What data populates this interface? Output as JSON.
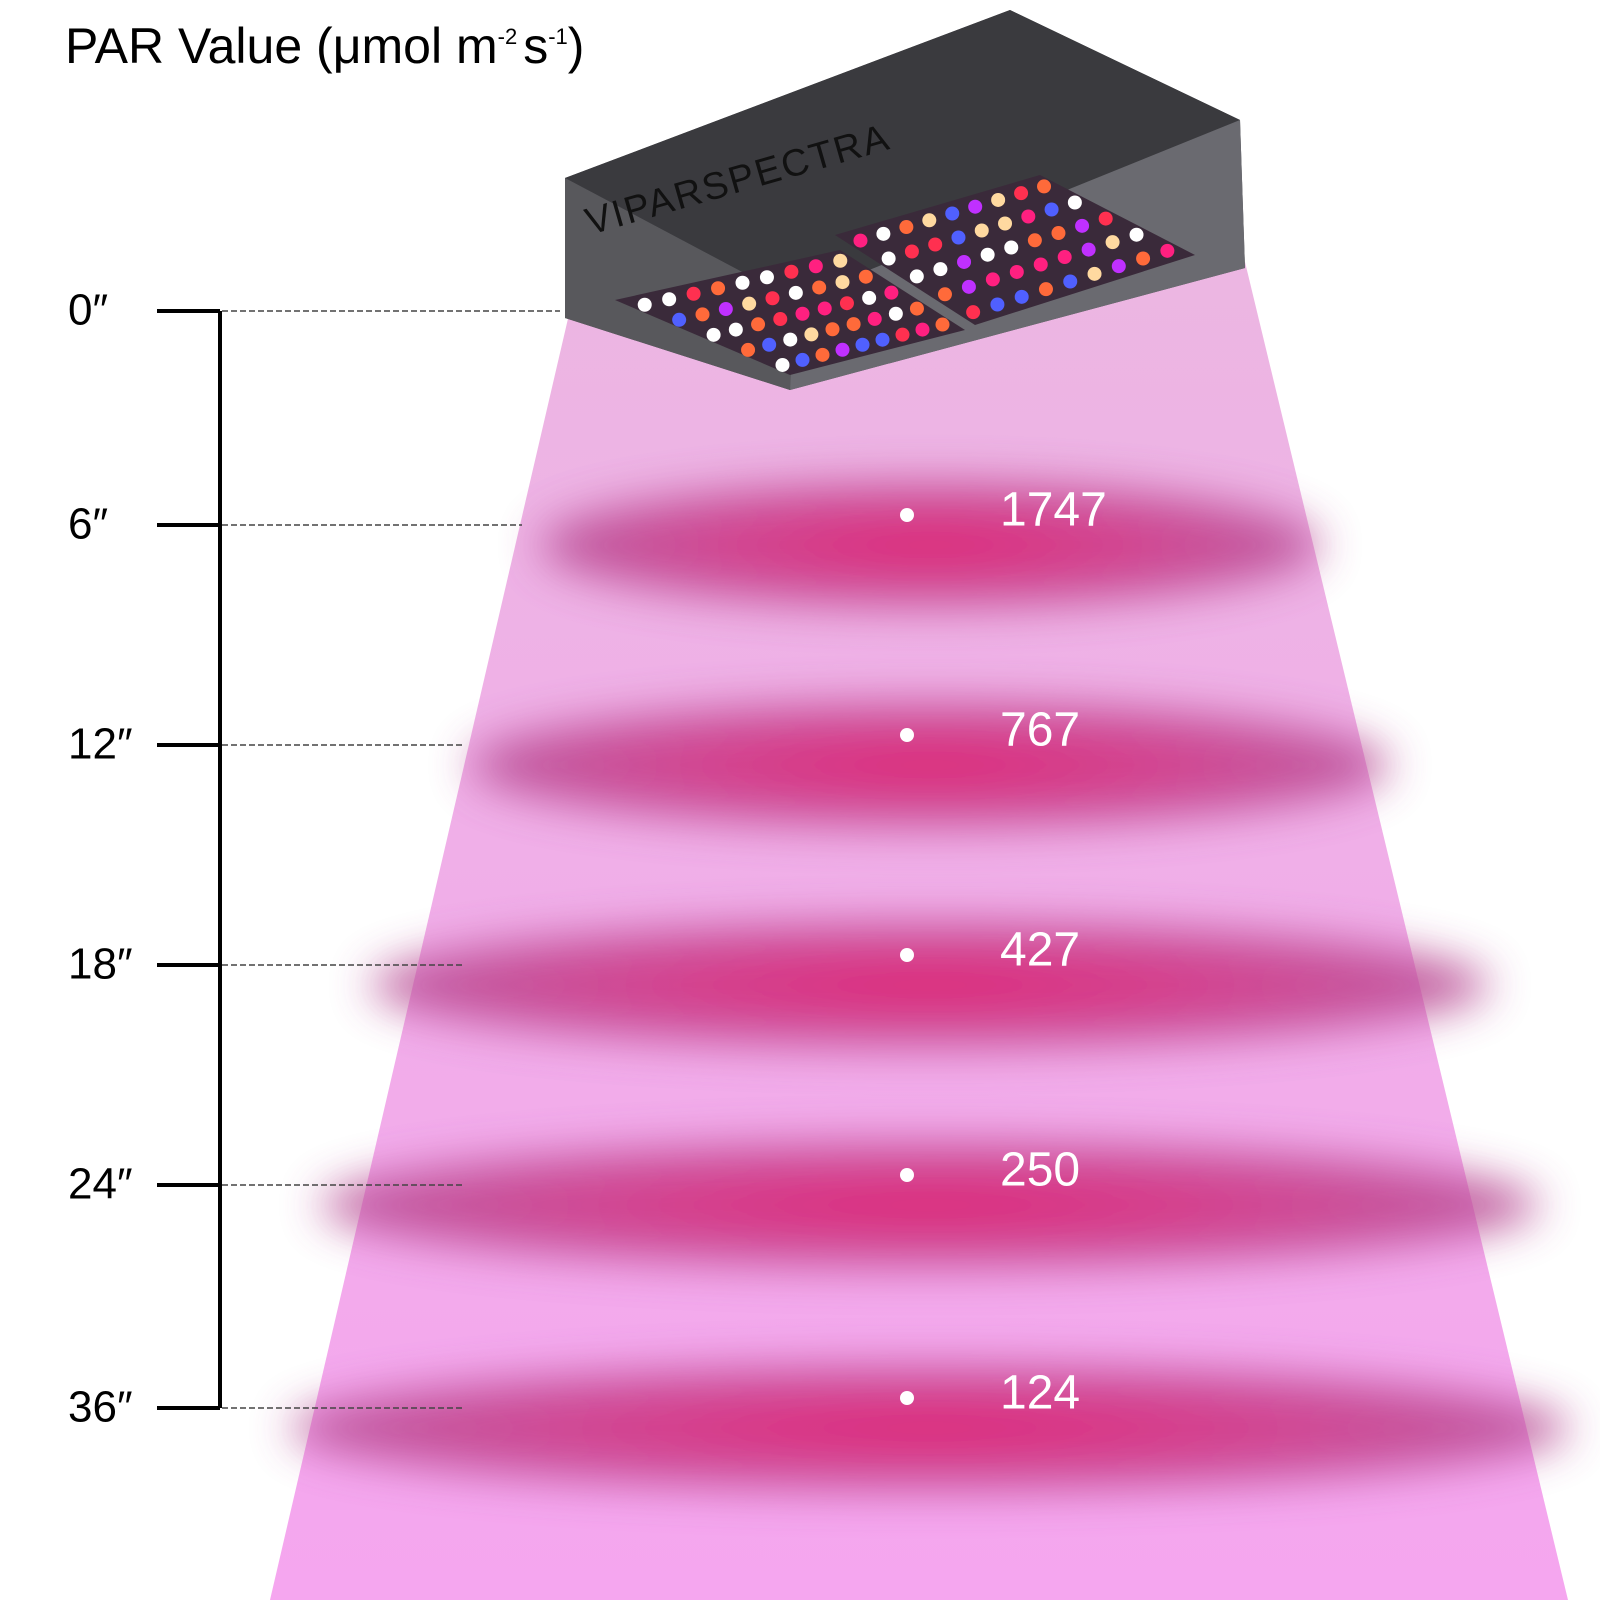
{
  "title": {
    "main": "PAR Value (μmol m",
    "sup1": "-2",
    "unit": "s",
    "sup2": "-1",
    "close": ")"
  },
  "brand": "VIPARSPECTRA",
  "top_height": "0″",
  "levels": [
    {
      "height": "6″",
      "par": 1747
    },
    {
      "height": "12″",
      "par": 767
    },
    {
      "height": "18″",
      "par": 427
    },
    {
      "height": "24″",
      "par": 250
    },
    {
      "height": "36″",
      "par": 124
    }
  ]
}
